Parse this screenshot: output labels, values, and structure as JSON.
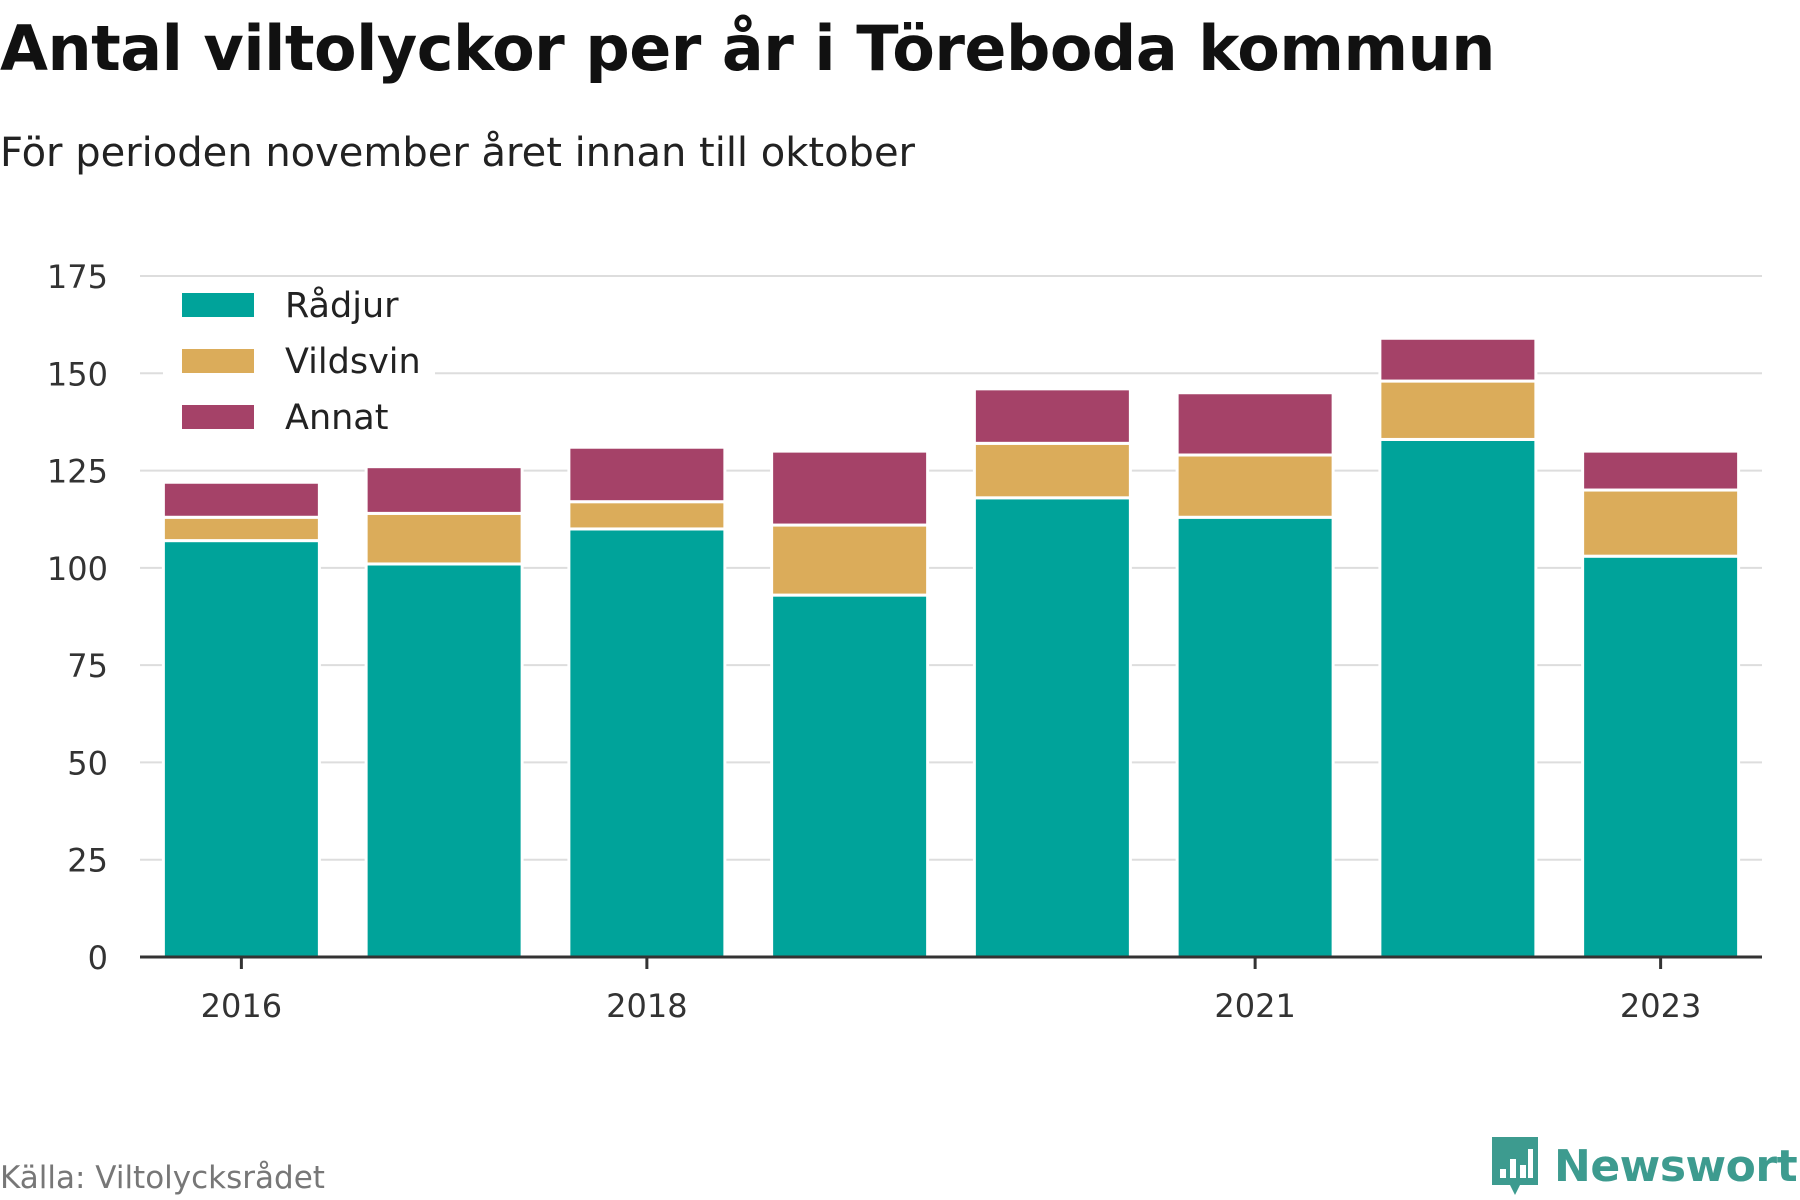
{
  "title": "Antal viltolyckor per år i Töreboda kommun",
  "subtitle": "För perioden november året innan till oktober",
  "source": "Källa: Viltolycksrådet",
  "brand": {
    "name": "Newsworthy",
    "icon": "newsworthy-logo-icon",
    "color": "#3d9b8f"
  },
  "chart_data": {
    "type": "bar",
    "stacked": true,
    "categories": [
      "2016",
      "2017",
      "2018",
      "2019",
      "2020",
      "2021",
      "2022",
      "2023"
    ],
    "x_tick_labels": [
      "2016",
      "2018",
      "2021",
      "2023"
    ],
    "series": [
      {
        "name": "Rådjur",
        "color": "#00a39a",
        "values": [
          107,
          101,
          110,
          93,
          118,
          113,
          133,
          103
        ]
      },
      {
        "name": "Vildsvin",
        "color": "#dbac5a",
        "values": [
          6,
          13,
          7,
          18,
          14,
          16,
          15,
          17
        ]
      },
      {
        "name": "Annat",
        "color": "#a54268",
        "values": [
          9,
          12,
          14,
          19,
          14,
          16,
          11,
          10
        ]
      }
    ],
    "ylim": [
      0,
      175
    ],
    "y_ticks": [
      0,
      25,
      50,
      75,
      100,
      125,
      150,
      175
    ],
    "grid": true,
    "legend_position": "top-left"
  }
}
